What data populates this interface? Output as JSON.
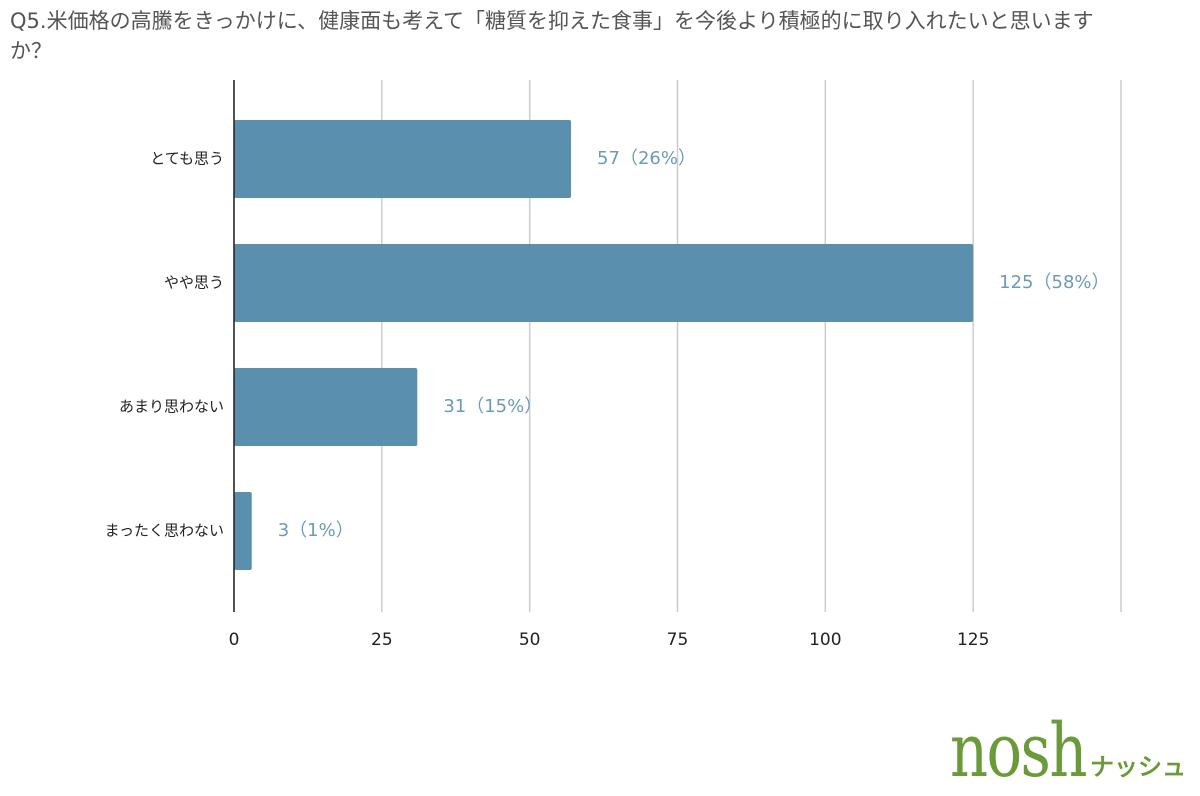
{
  "chart_data": {
    "type": "barh",
    "title": "Q5.米価格の高騰をきっかけに、健康面も考えて「糖質を抑えた食事」を今後より積極的に取り入れたいと思いますか？",
    "categories": [
      "とても思う",
      "やや思う",
      "あまり思わない",
      "まったく思わない"
    ],
    "values": [
      57,
      125,
      31,
      3
    ],
    "value_labels": [
      "57（26%）",
      "125（58%）",
      "31（15%）",
      "3（1%）"
    ],
    "color": "#5b8fae",
    "xlim": [
      0,
      150
    ],
    "xticks": [
      0,
      25,
      50,
      75,
      100,
      125
    ],
    "grid": true
  },
  "brand": {
    "name": "nosh",
    "kana": "ナッシュ"
  }
}
